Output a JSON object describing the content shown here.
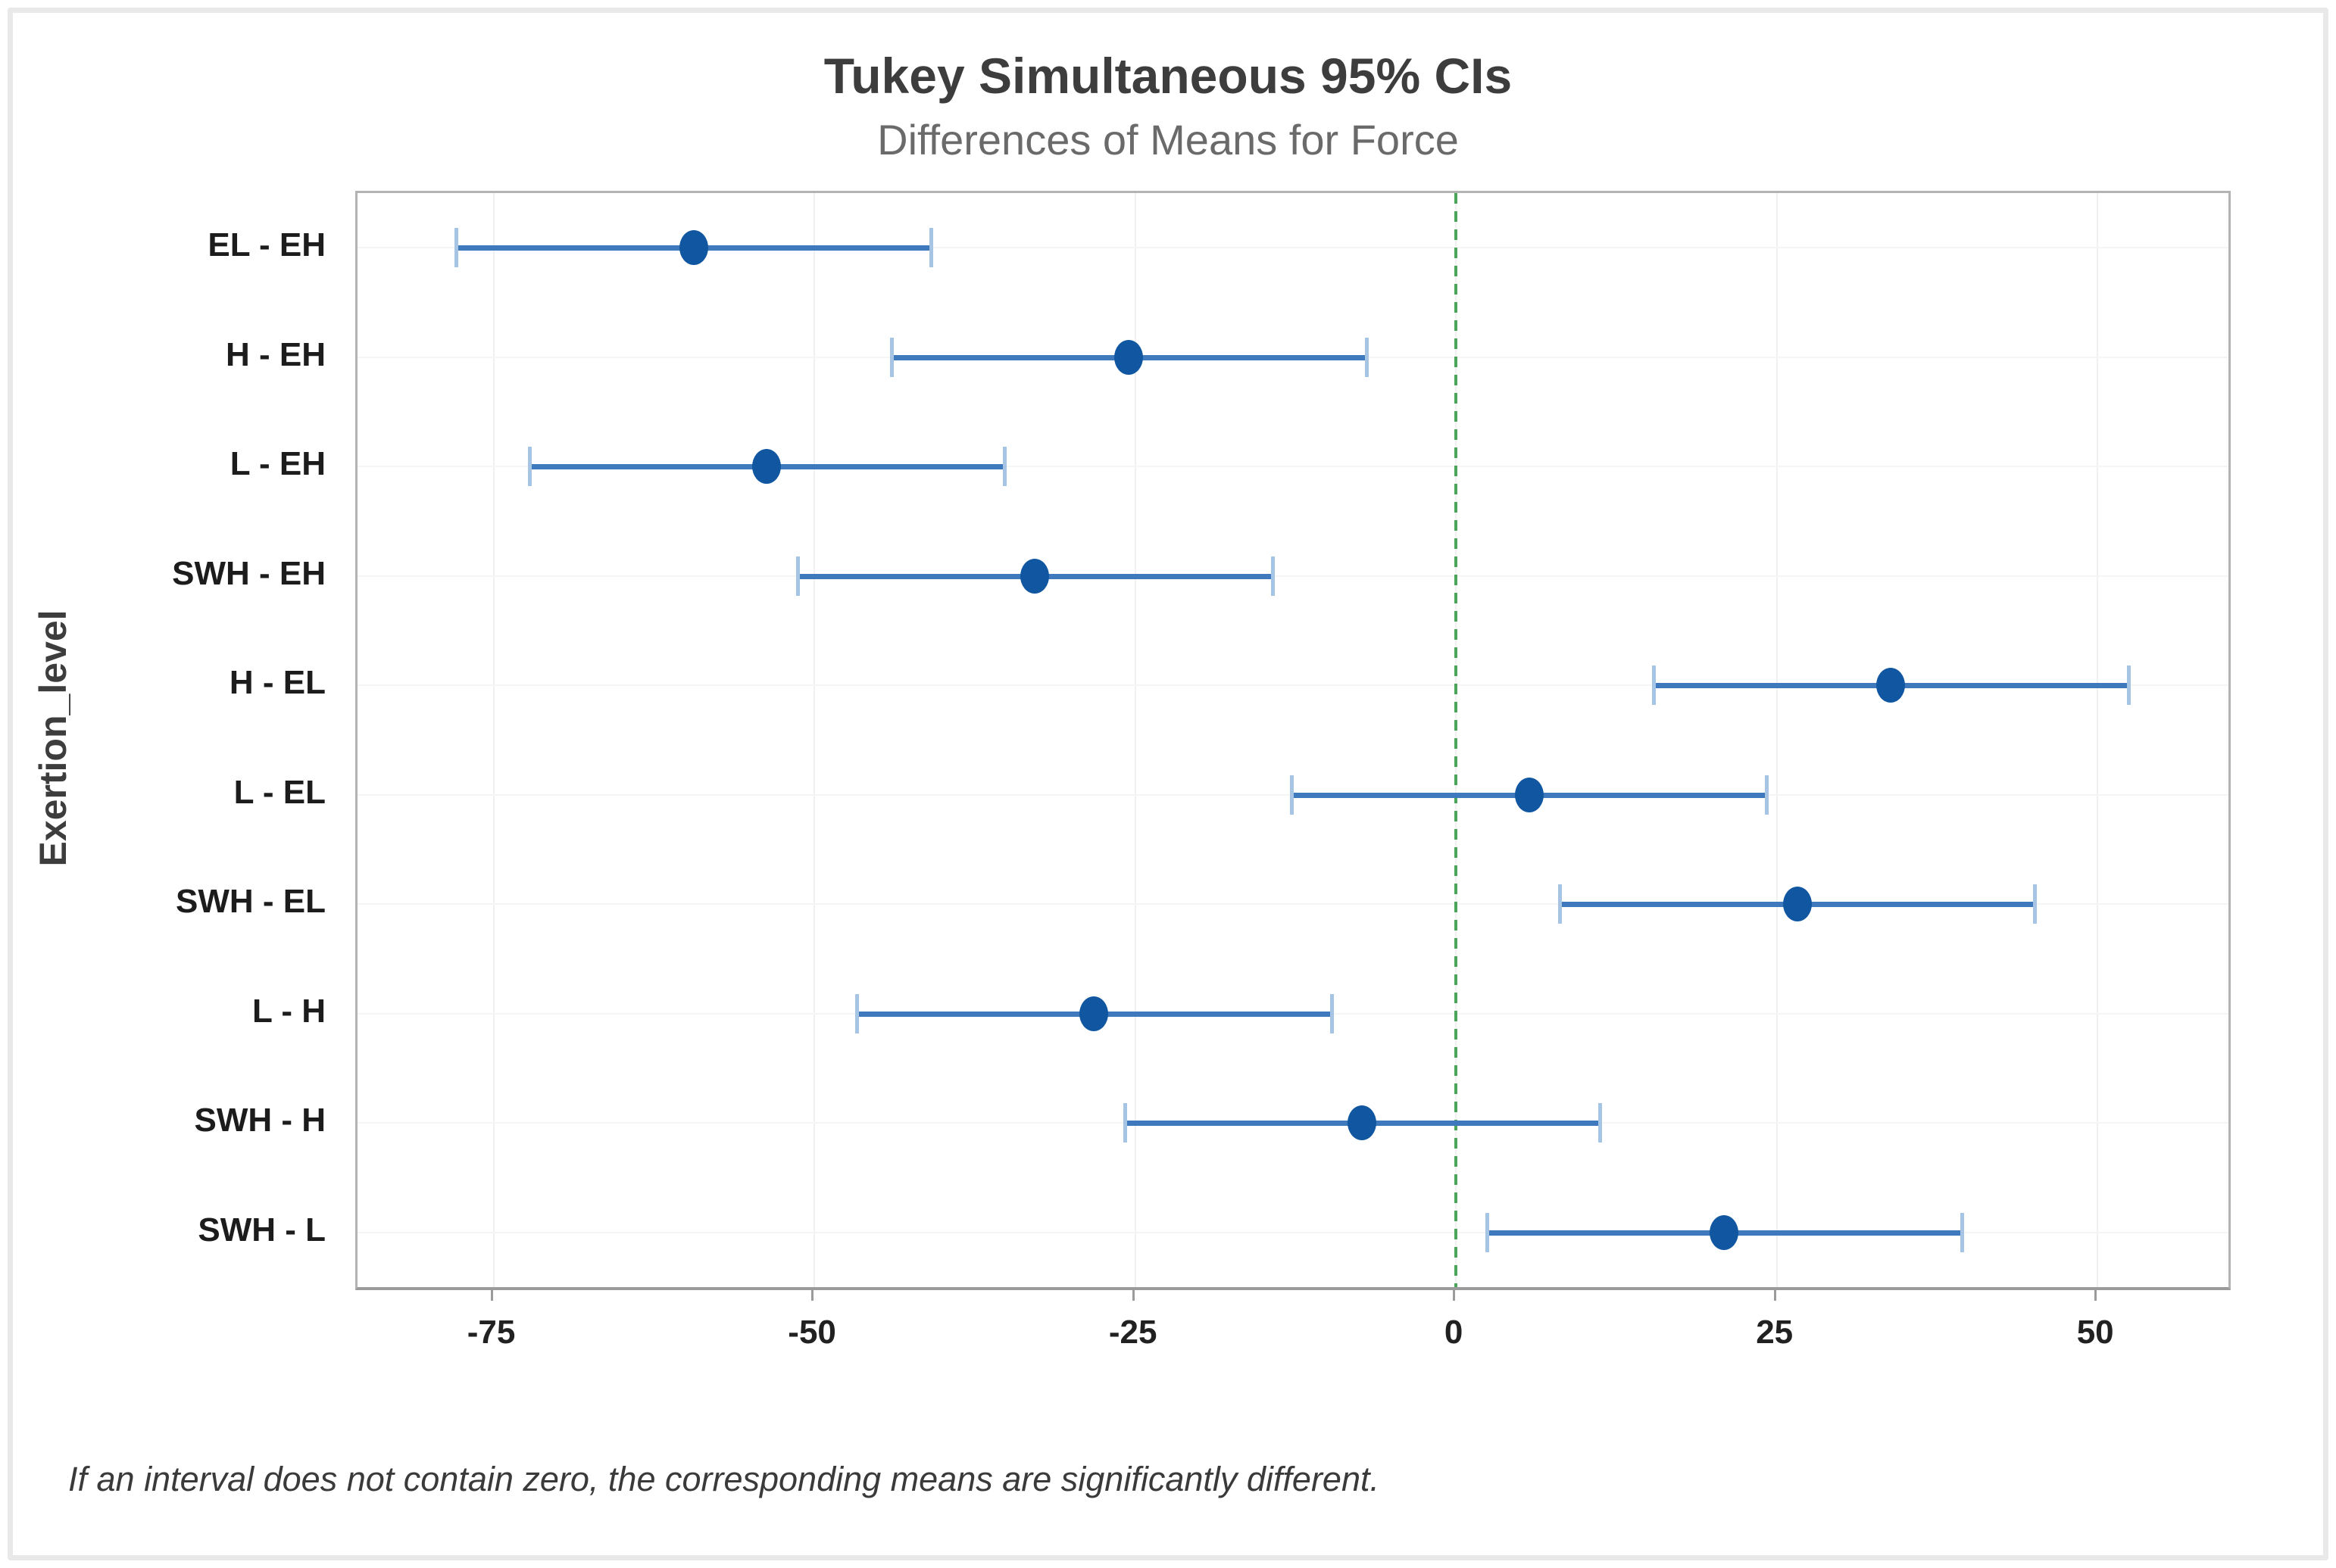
{
  "title": "Tukey Simultaneous 95% CIs",
  "subtitle": "Differences of Means for Force",
  "footnote": "If an interval does not contain zero, the corresponding means are significantly different.",
  "y_axis_title": "Exertion_level",
  "colors": {
    "interval_line": "#3D79BC",
    "interval_cap": "#A6C5E4",
    "marker": "#1056A0",
    "zero_line": "#4BA55B",
    "plot_border": "#b3b3b3",
    "grid": "#f0f0f0",
    "title_text": "#3d3d3d",
    "subtitle_text": "#6a6a6a"
  },
  "chart_data": {
    "type": "scatter",
    "subtype": "interval-plot",
    "title": "Tukey Simultaneous 95% CIs",
    "subtitle": "Differences of Means for Force",
    "xlabel": "",
    "ylabel": "Exertion_level",
    "xlim": [
      -85.6,
      60.2
    ],
    "x_ticks": [
      -75,
      -50,
      -25,
      0,
      25,
      50
    ],
    "zero_reference_line": 0,
    "grid": true,
    "legend": "none",
    "categories": [
      "EL - EH",
      "H - EH",
      "L - EH",
      "SWH - EH",
      "H - EL",
      "L - EL",
      "SWH - EL",
      "L - H",
      "SWH - H",
      "SWH - L"
    ],
    "intervals": [
      {
        "label": "EL - EH",
        "center": -59.4,
        "lower": -77.9,
        "upper": -40.9
      },
      {
        "label": "H - EH",
        "center": -25.5,
        "lower": -44.0,
        "upper": -7.0
      },
      {
        "label": "L - EH",
        "center": -53.7,
        "lower": -72.2,
        "upper": -35.2
      },
      {
        "label": "SWH - EH",
        "center": -32.8,
        "lower": -51.3,
        "upper": -14.3
      },
      {
        "label": "H - EL",
        "center": 33.9,
        "lower": 15.4,
        "upper": 52.4
      },
      {
        "label": "L - EL",
        "center": 5.7,
        "lower": -12.8,
        "upper": 24.2
      },
      {
        "label": "SWH - EL",
        "center": 26.6,
        "lower": 8.1,
        "upper": 45.1
      },
      {
        "label": "L - H",
        "center": -28.2,
        "lower": -46.7,
        "upper": -9.7
      },
      {
        "label": "SWH - H",
        "center": -7.3,
        "lower": -25.8,
        "upper": 11.2
      },
      {
        "label": "SWH - L",
        "center": 20.9,
        "lower": 2.4,
        "upper": 39.4
      }
    ]
  }
}
